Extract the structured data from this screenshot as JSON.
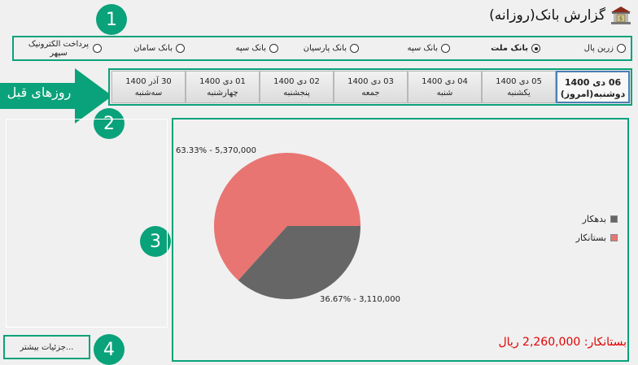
{
  "window": {
    "title": "گزارش بانک(روزانه)",
    "icon": "bank-icon"
  },
  "annotations": {
    "badge_1": "1",
    "badge_2": "2",
    "badge_3": "3",
    "badge_4": "4",
    "arrow_label": "روزهای قبل"
  },
  "banks": [
    {
      "label": "زرین پال",
      "selected": false
    },
    {
      "label": "بانک ملت",
      "selected": true
    },
    {
      "label": "بانک سپه",
      "selected": false
    },
    {
      "label": "بانک پارسیان",
      "selected": false
    },
    {
      "label": "بانک سپه",
      "selected": false
    },
    {
      "label": "بانک سامان",
      "selected": false
    },
    {
      "label": "پرداخت الکترونیک سپهر",
      "selected": false
    }
  ],
  "days": [
    {
      "date": "06 دی 1400",
      "weekday": "دوشنبه(امروز)",
      "active": true
    },
    {
      "date": "05 دی 1400",
      "weekday": "یکشنبه",
      "active": false
    },
    {
      "date": "04 دی 1400",
      "weekday": "شنبه",
      "active": false
    },
    {
      "date": "03 دی 1400",
      "weekday": "جمعه",
      "active": false
    },
    {
      "date": "02 دی 1400",
      "weekday": "پنجشنبه",
      "active": false
    },
    {
      "date": "01 دی 1400",
      "weekday": "چهارشنبه",
      "active": false
    },
    {
      "date": "30 آذر 1400",
      "weekday": "سه‌شنبه",
      "active": false
    }
  ],
  "chart_data": {
    "type": "pie",
    "slices": [
      {
        "name": "بستانکار",
        "value": 5370000,
        "percent": 63.33,
        "label": "63.33% - 5,370,000",
        "color": "#e87572"
      },
      {
        "name": "بدهکار",
        "value": 3110000,
        "percent": 36.67,
        "label": "36.67% - 3,110,000",
        "color": "#666666"
      }
    ],
    "legend": [
      {
        "name": "بدهکار",
        "color": "#666666"
      },
      {
        "name": "بستانکار",
        "color": "#e87572"
      }
    ],
    "legend_position": "right"
  },
  "footer": {
    "more_button": "جزئیات بیشتر...",
    "balance": "بستانکار: 2,260,000 ریال"
  },
  "colors": {
    "accent": "#0aa27a",
    "balance_text": "#e30000"
  }
}
